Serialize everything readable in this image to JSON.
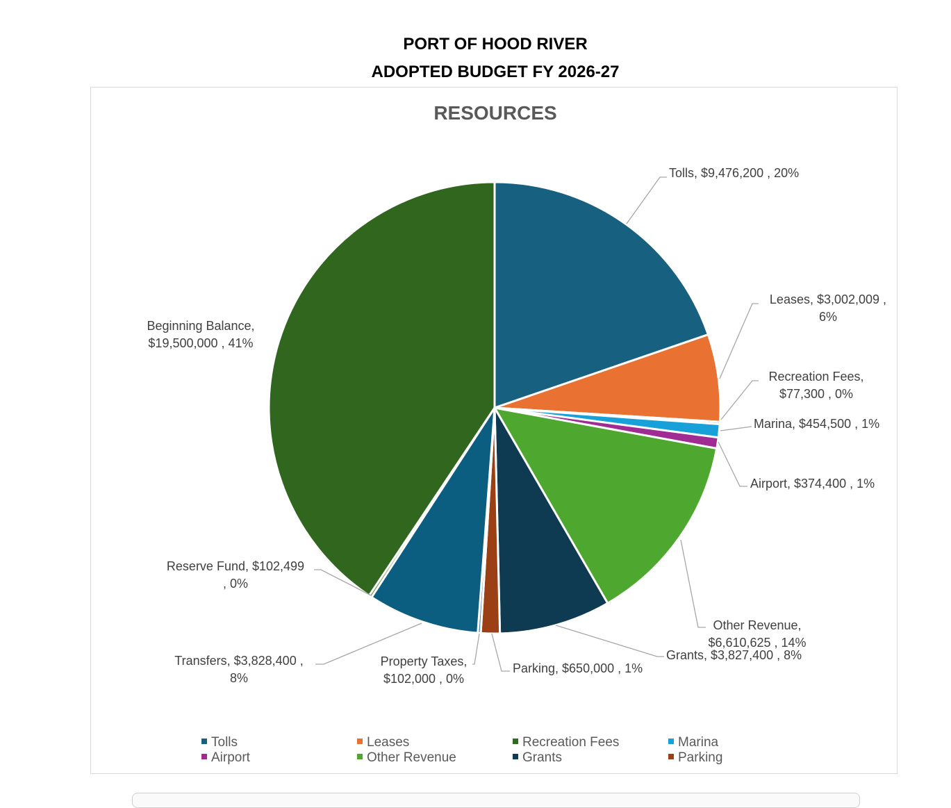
{
  "header": {
    "line1": "PORT OF HOOD RIVER",
    "line2": "ADOPTED BUDGET FY 2026-27"
  },
  "chart_data": {
    "type": "pie",
    "title": "RESOURCES",
    "slices": [
      {
        "name": "Tolls",
        "value": 9476200,
        "percent": "20%",
        "color": "#17607f",
        "label": [
          "Tolls,  $9,476,200 , 20%"
        ]
      },
      {
        "name": "Leases",
        "value": 3002009,
        "percent": "6%",
        "color": "#e97132",
        "label": [
          "Leases,  $3,002,009 ,",
          "6%"
        ]
      },
      {
        "name": "Recreation Fees",
        "value": 77300,
        "percent": "0%",
        "color": "#2e6b23",
        "label": [
          "Recreation Fees,",
          "$77,300 , 0%"
        ]
      },
      {
        "name": "Marina",
        "value": 454500,
        "percent": "1%",
        "color": "#18a0d8",
        "label": [
          "Marina,  $454,500 , 1%"
        ]
      },
      {
        "name": "Airport",
        "value": 374400,
        "percent": "1%",
        "color": "#a02b93",
        "label": [
          "Airport,  $374,400 , 1%"
        ]
      },
      {
        "name": "Other Revenue",
        "value": 6610625,
        "percent": "14%",
        "color": "#4ea72e",
        "label": [
          "Other Revenue,",
          "$6,610,625 , 14%"
        ]
      },
      {
        "name": "Grants",
        "value": 3827400,
        "percent": "8%",
        "color": "#0e3a52",
        "label": [
          "Grants,  $3,827,400 , 8%"
        ]
      },
      {
        "name": "Parking",
        "value": 650000,
        "percent": "1%",
        "color": "#9b3f14",
        "label": [
          "Parking,  $650,000 , 1%"
        ]
      },
      {
        "name": "Property Taxes",
        "value": 102000,
        "percent": "0%",
        "color": "#3f7ea0",
        "label": [
          "Property Taxes,",
          "$102,000 , 0%"
        ]
      },
      {
        "name": "Transfers",
        "value": 3828400,
        "percent": "8%",
        "color": "#0b5e80",
        "label": [
          "Transfers,  $3,828,400 ,",
          "8%"
        ]
      },
      {
        "name": "Reserve Fund",
        "value": 102499,
        "percent": "0%",
        "color": "#6b9a4f",
        "label": [
          "Reserve Fund,  $102,499",
          ", 0%"
        ]
      },
      {
        "name": "Beginning Balance",
        "value": 19500000,
        "percent": "41%",
        "color": "#31661f",
        "label": [
          "Beginning Balance,",
          "$19,500,000 , 41%"
        ]
      }
    ],
    "legend": [
      {
        "name": "Tolls",
        "color": "#17607f"
      },
      {
        "name": "Leases",
        "color": "#e97132"
      },
      {
        "name": "Recreation Fees",
        "color": "#2e6b23"
      },
      {
        "name": "Marina",
        "color": "#18a0d8"
      },
      {
        "name": "Airport",
        "color": "#a02b93"
      },
      {
        "name": "Other Revenue",
        "color": "#4ea72e"
      },
      {
        "name": "Grants",
        "color": "#0e3a52"
      },
      {
        "name": "Parking",
        "color": "#9b3f14"
      }
    ],
    "legend_placement": "bottom"
  }
}
